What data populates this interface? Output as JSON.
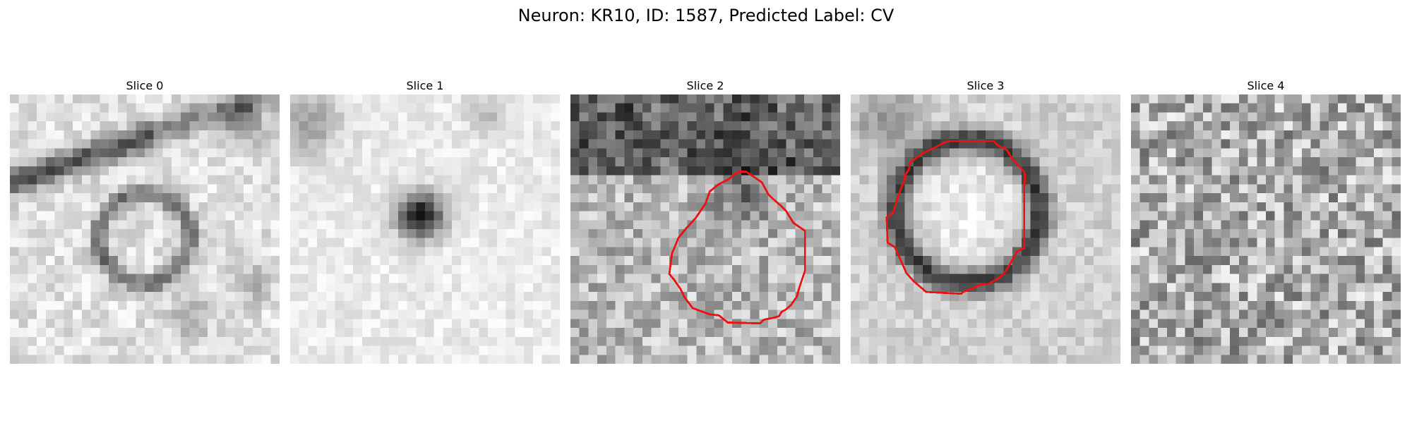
{
  "figure": {
    "title": "Neuron: KR10, ID: 1587, Predicted Label: CV"
  },
  "panels": [
    {
      "title": "Slice 0",
      "contour": false
    },
    {
      "title": "Slice 1",
      "contour": false
    },
    {
      "title": "Slice 2",
      "contour": true
    },
    {
      "title": "Slice 3",
      "contour": true
    },
    {
      "title": "Slice 4",
      "contour": false
    }
  ],
  "colors": {
    "background": "#ffffff",
    "contour": "#ee1111",
    "colormap": "grayscale"
  }
}
